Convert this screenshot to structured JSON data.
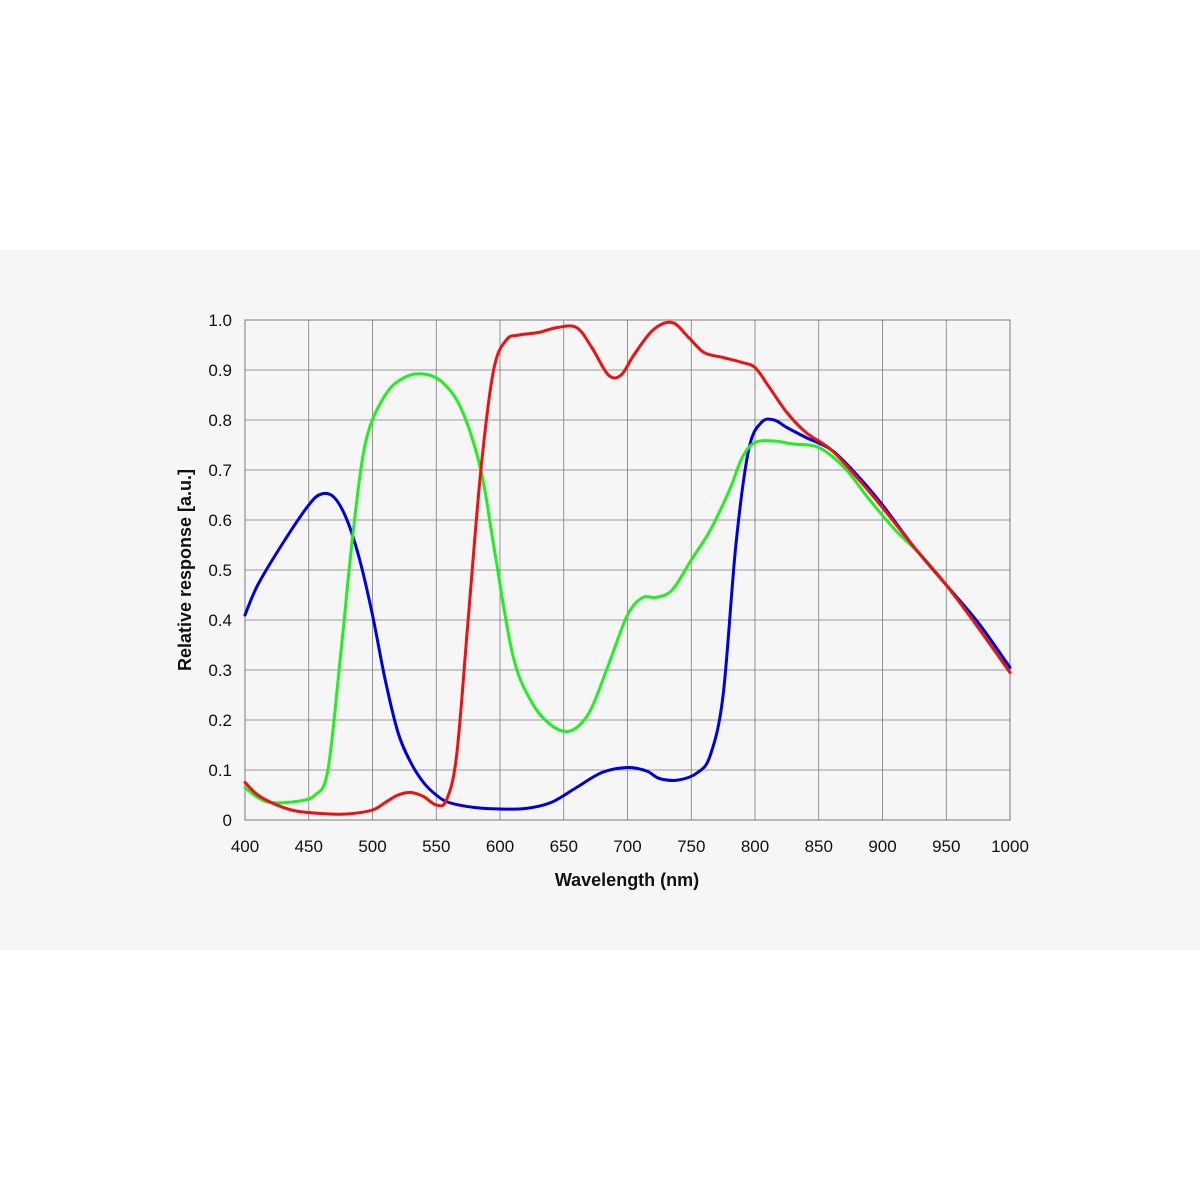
{
  "chart_data": {
    "type": "line",
    "title": "",
    "xlabel": "Wavelength (nm)",
    "ylabel": "Relative response [a.u.]",
    "xlim": [
      400,
      1000
    ],
    "ylim": [
      0,
      1.0
    ],
    "grid": true,
    "x_ticks": [
      "400",
      "450",
      "500",
      "550",
      "600",
      "650",
      "700",
      "750",
      "800",
      "850",
      "900",
      "950",
      "1000"
    ],
    "y_ticks": [
      "0",
      "0.1",
      "0.2",
      "0.3",
      "0.4",
      "0.5",
      "0.6",
      "0.7",
      "0.8",
      "0.9",
      "1.0"
    ],
    "series": [
      {
        "color": "#0000dd",
        "points": [
          [
            400,
            0.41
          ],
          [
            410,
            0.47
          ],
          [
            430,
            0.555
          ],
          [
            450,
            0.63
          ],
          [
            460,
            0.652
          ],
          [
            470,
            0.645
          ],
          [
            480,
            0.6
          ],
          [
            490,
            0.52
          ],
          [
            500,
            0.41
          ],
          [
            510,
            0.28
          ],
          [
            520,
            0.175
          ],
          [
            530,
            0.115
          ],
          [
            540,
            0.075
          ],
          [
            550,
            0.05
          ],
          [
            560,
            0.035
          ],
          [
            580,
            0.025
          ],
          [
            600,
            0.022
          ],
          [
            620,
            0.023
          ],
          [
            640,
            0.035
          ],
          [
            660,
            0.065
          ],
          [
            680,
            0.095
          ],
          [
            700,
            0.105
          ],
          [
            715,
            0.098
          ],
          [
            725,
            0.083
          ],
          [
            740,
            0.08
          ],
          [
            755,
            0.095
          ],
          [
            765,
            0.13
          ],
          [
            775,
            0.25
          ],
          [
            785,
            0.55
          ],
          [
            795,
            0.74
          ],
          [
            805,
            0.795
          ],
          [
            815,
            0.8
          ],
          [
            825,
            0.785
          ],
          [
            840,
            0.765
          ],
          [
            860,
            0.74
          ],
          [
            880,
            0.69
          ],
          [
            900,
            0.63
          ],
          [
            925,
            0.545
          ],
          [
            950,
            0.47
          ],
          [
            975,
            0.395
          ],
          [
            1000,
            0.305
          ]
        ]
      },
      {
        "color": "#22ee22",
        "points": [
          [
            400,
            0.065
          ],
          [
            410,
            0.045
          ],
          [
            420,
            0.035
          ],
          [
            440,
            0.037
          ],
          [
            455,
            0.05
          ],
          [
            465,
            0.1
          ],
          [
            475,
            0.33
          ],
          [
            485,
            0.58
          ],
          [
            495,
            0.76
          ],
          [
            510,
            0.85
          ],
          [
            525,
            0.885
          ],
          [
            540,
            0.892
          ],
          [
            555,
            0.875
          ],
          [
            570,
            0.82
          ],
          [
            585,
            0.7
          ],
          [
            595,
            0.55
          ],
          [
            610,
            0.33
          ],
          [
            625,
            0.235
          ],
          [
            640,
            0.19
          ],
          [
            655,
            0.178
          ],
          [
            670,
            0.215
          ],
          [
            685,
            0.31
          ],
          [
            700,
            0.41
          ],
          [
            712,
            0.445
          ],
          [
            722,
            0.445
          ],
          [
            735,
            0.46
          ],
          [
            750,
            0.52
          ],
          [
            765,
            0.58
          ],
          [
            780,
            0.66
          ],
          [
            790,
            0.725
          ],
          [
            800,
            0.755
          ],
          [
            815,
            0.758
          ],
          [
            830,
            0.752
          ],
          [
            850,
            0.745
          ],
          [
            870,
            0.705
          ],
          [
            890,
            0.64
          ],
          [
            910,
            0.58
          ],
          [
            930,
            0.53
          ],
          [
            950,
            0.47
          ],
          [
            975,
            0.385
          ],
          [
            1000,
            0.295
          ]
        ]
      },
      {
        "color": "#ee1111",
        "points": [
          [
            400,
            0.075
          ],
          [
            410,
            0.05
          ],
          [
            425,
            0.03
          ],
          [
            440,
            0.018
          ],
          [
            460,
            0.013
          ],
          [
            480,
            0.012
          ],
          [
            500,
            0.02
          ],
          [
            510,
            0.035
          ],
          [
            520,
            0.05
          ],
          [
            530,
            0.055
          ],
          [
            540,
            0.047
          ],
          [
            550,
            0.03
          ],
          [
            558,
            0.04
          ],
          [
            566,
            0.13
          ],
          [
            575,
            0.4
          ],
          [
            585,
            0.7
          ],
          [
            595,
            0.9
          ],
          [
            605,
            0.96
          ],
          [
            615,
            0.97
          ],
          [
            630,
            0.975
          ],
          [
            645,
            0.985
          ],
          [
            660,
            0.985
          ],
          [
            672,
            0.945
          ],
          [
            685,
            0.89
          ],
          [
            695,
            0.89
          ],
          [
            705,
            0.93
          ],
          [
            720,
            0.98
          ],
          [
            735,
            0.995
          ],
          [
            748,
            0.965
          ],
          [
            760,
            0.935
          ],
          [
            775,
            0.925
          ],
          [
            790,
            0.915
          ],
          [
            800,
            0.905
          ],
          [
            810,
            0.87
          ],
          [
            825,
            0.815
          ],
          [
            840,
            0.775
          ],
          [
            860,
            0.74
          ],
          [
            880,
            0.685
          ],
          [
            900,
            0.625
          ],
          [
            925,
            0.545
          ],
          [
            950,
            0.47
          ],
          [
            975,
            0.385
          ],
          [
            1000,
            0.295
          ]
        ]
      }
    ]
  }
}
